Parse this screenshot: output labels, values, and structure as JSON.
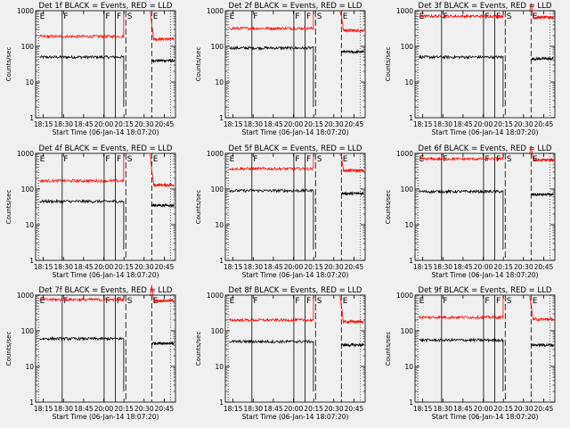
{
  "figure": {
    "background": "#f0f0f0",
    "events_color": "#000000",
    "lld_color": "#ff0000",
    "axes_color": "#000000"
  },
  "chart_data": [
    {
      "type": "line",
      "title": "Det 1f BLACK = Events, RED = LLD",
      "xlabel": "Start Time (06-Jan-14 18:07:20)",
      "ylabel": "Counts/sec",
      "yscale": "log",
      "ylim": [
        1,
        1000
      ],
      "xticks": [
        "18:15",
        "18:30",
        "18:45",
        "20:00",
        "20:15",
        "20:30",
        "20:45"
      ],
      "yticks": [
        "1",
        "10",
        "100",
        "1000"
      ],
      "grid": false,
      "markers": [
        {
          "label": "E",
          "at": 0.02
        },
        {
          "label": "F",
          "at": 0.19
        },
        {
          "label": "F",
          "at": 0.49
        },
        {
          "label": "F",
          "at": 0.57
        },
        {
          "label": "S",
          "at": 0.645
        },
        {
          "label": "E",
          "at": 0.83
        }
      ],
      "series": [
        {
          "name": "Events",
          "color": "#000000",
          "before": 50,
          "after": 40,
          "gap": [
            0.63,
            0.82
          ]
        },
        {
          "name": "LLD",
          "color": "#ff0000",
          "before": 190,
          "after": 160,
          "gap": [
            0.63,
            0.82
          ]
        }
      ]
    },
    {
      "type": "line",
      "title": "Det 2f BLACK = Events, RED = LLD",
      "xlabel": "Start Time (06-Jan-14 18:07:20)",
      "ylabel": "Counts/sec",
      "yscale": "log",
      "ylim": [
        1,
        1000
      ],
      "xticks": [
        "18:15",
        "18:30",
        "18:45",
        "20:00",
        "20:15",
        "20:30",
        "20:45"
      ],
      "yticks": [
        "1",
        "10",
        "100",
        "1000"
      ],
      "grid": false,
      "markers": [
        {
          "label": "E",
          "at": 0.02
        },
        {
          "label": "F",
          "at": 0.19
        },
        {
          "label": "F",
          "at": 0.49
        },
        {
          "label": "F",
          "at": 0.57
        },
        {
          "label": "S",
          "at": 0.645
        },
        {
          "label": "E",
          "at": 0.83
        }
      ],
      "series": [
        {
          "name": "Events",
          "color": "#000000",
          "before": 90,
          "after": 70,
          "gap": [
            0.63,
            0.82
          ]
        },
        {
          "name": "LLD",
          "color": "#ff0000",
          "before": 320,
          "after": 280,
          "gap": [
            0.63,
            0.82
          ]
        }
      ]
    },
    {
      "type": "line",
      "title": "Det 3f BLACK = Events, RED = LLD",
      "xlabel": "Start Time (06-Jan-14 18:07:20)",
      "ylabel": "Counts/sec",
      "yscale": "log",
      "ylim": [
        1,
        1000
      ],
      "xticks": [
        "18:15",
        "18:30",
        "18:45",
        "20:00",
        "20:15",
        "20:30",
        "20:45"
      ],
      "yticks": [
        "1",
        "10",
        "100",
        "1000"
      ],
      "grid": false,
      "markers": [
        {
          "label": "E",
          "at": 0.02
        },
        {
          "label": "F",
          "at": 0.19
        },
        {
          "label": "F",
          "at": 0.49
        },
        {
          "label": "F",
          "at": 0.57
        },
        {
          "label": "S",
          "at": 0.645
        },
        {
          "label": "E",
          "at": 0.83
        }
      ],
      "series": [
        {
          "name": "Events",
          "color": "#000000",
          "before": 50,
          "after": 45,
          "gap": [
            0.63,
            0.82
          ]
        },
        {
          "name": "LLD",
          "color": "#ff0000",
          "before": 700,
          "after": 650,
          "gap": [
            0.63,
            0.82
          ]
        }
      ]
    },
    {
      "type": "line",
      "title": "Det 4f BLACK = Events, RED = LLD",
      "xlabel": "Start Time (06-Jan-14 18:07:20)",
      "ylabel": "Counts/sec",
      "yscale": "log",
      "ylim": [
        1,
        1000
      ],
      "xticks": [
        "18:15",
        "18:30",
        "18:45",
        "20:00",
        "20:15",
        "20:30",
        "20:45"
      ],
      "yticks": [
        "1",
        "10",
        "100",
        "1000"
      ],
      "grid": false,
      "markers": [
        {
          "label": "E",
          "at": 0.02
        },
        {
          "label": "F",
          "at": 0.19
        },
        {
          "label": "F",
          "at": 0.49
        },
        {
          "label": "F",
          "at": 0.57
        },
        {
          "label": "S",
          "at": 0.645
        },
        {
          "label": "E",
          "at": 0.83
        }
      ],
      "series": [
        {
          "name": "Events",
          "color": "#000000",
          "before": 45,
          "after": 35,
          "gap": [
            0.63,
            0.82
          ]
        },
        {
          "name": "LLD",
          "color": "#ff0000",
          "before": 170,
          "after": 130,
          "gap": [
            0.63,
            0.82
          ]
        }
      ]
    },
    {
      "type": "line",
      "title": "Det 5f BLACK = Events, RED = LLD",
      "xlabel": "Start Time (06-Jan-14 18:07:20)",
      "ylabel": "Counts/sec",
      "yscale": "log",
      "ylim": [
        1,
        1000
      ],
      "xticks": [
        "18:15",
        "18:30",
        "18:45",
        "20:00",
        "20:15",
        "20:30",
        "20:45"
      ],
      "yticks": [
        "1",
        "10",
        "100",
        "1000"
      ],
      "grid": false,
      "markers": [
        {
          "label": "E",
          "at": 0.02
        },
        {
          "label": "F",
          "at": 0.19
        },
        {
          "label": "F",
          "at": 0.49
        },
        {
          "label": "F",
          "at": 0.57
        },
        {
          "label": "S",
          "at": 0.645
        },
        {
          "label": "E",
          "at": 0.83
        }
      ],
      "series": [
        {
          "name": "Events",
          "color": "#000000",
          "before": 90,
          "after": 75,
          "gap": [
            0.63,
            0.82
          ]
        },
        {
          "name": "LLD",
          "color": "#ff0000",
          "before": 370,
          "after": 330,
          "gap": [
            0.63,
            0.82
          ]
        }
      ]
    },
    {
      "type": "line",
      "title": "Det 6f BLACK = Events, RED = LLD",
      "xlabel": "Start Time (06-Jan-14 18:07:20)",
      "ylabel": "Counts/sec",
      "yscale": "log",
      "ylim": [
        1,
        1000
      ],
      "xticks": [
        "18:15",
        "18:30",
        "18:45",
        "20:00",
        "20:15",
        "20:30",
        "20:45"
      ],
      "yticks": [
        "1",
        "10",
        "100",
        "1000"
      ],
      "grid": false,
      "markers": [
        {
          "label": "E",
          "at": 0.02
        },
        {
          "label": "F",
          "at": 0.19
        },
        {
          "label": "F",
          "at": 0.49
        },
        {
          "label": "F",
          "at": 0.57
        },
        {
          "label": "S",
          "at": 0.645
        },
        {
          "label": "E",
          "at": 0.83
        }
      ],
      "series": [
        {
          "name": "Events",
          "color": "#000000",
          "before": 85,
          "after": 70,
          "gap": [
            0.63,
            0.82
          ]
        },
        {
          "name": "LLD",
          "color": "#ff0000",
          "before": 700,
          "after": 650,
          "gap": [
            0.63,
            0.82
          ]
        }
      ]
    },
    {
      "type": "line",
      "title": "Det 7f BLACK = Events, RED = LLD",
      "xlabel": "Start Time (06-Jan-14 18:07:20)",
      "ylabel": "Counts/sec",
      "yscale": "log",
      "ylim": [
        1,
        1000
      ],
      "xticks": [
        "18:15",
        "18:30",
        "18:45",
        "20:00",
        "20:15",
        "20:30",
        "20:45"
      ],
      "yticks": [
        "1",
        "10",
        "100",
        "1000"
      ],
      "grid": false,
      "markers": [
        {
          "label": "E",
          "at": 0.02
        },
        {
          "label": "F",
          "at": 0.19
        },
        {
          "label": "F",
          "at": 0.49
        },
        {
          "label": "F",
          "at": 0.57
        },
        {
          "label": "S",
          "at": 0.645
        },
        {
          "label": "E",
          "at": 0.83
        }
      ],
      "series": [
        {
          "name": "Events",
          "color": "#000000",
          "before": 60,
          "after": 45,
          "gap": [
            0.63,
            0.82
          ]
        },
        {
          "name": "LLD",
          "color": "#ff0000",
          "before": 750,
          "after": 700,
          "gap": [
            0.63,
            0.82
          ]
        }
      ]
    },
    {
      "type": "line",
      "title": "Det 8f BLACK = Events, RED = LLD",
      "xlabel": "Start Time (06-Jan-14 18:07:20)",
      "ylabel": "Counts/sec",
      "yscale": "log",
      "ylim": [
        1,
        1000
      ],
      "xticks": [
        "18:15",
        "18:30",
        "18:45",
        "20:00",
        "20:15",
        "20:30",
        "20:45"
      ],
      "yticks": [
        "1",
        "10",
        "100",
        "1000"
      ],
      "grid": false,
      "markers": [
        {
          "label": "E",
          "at": 0.02
        },
        {
          "label": "F",
          "at": 0.19
        },
        {
          "label": "F",
          "at": 0.49
        },
        {
          "label": "F",
          "at": 0.57
        },
        {
          "label": "S",
          "at": 0.645
        },
        {
          "label": "E",
          "at": 0.83
        }
      ],
      "series": [
        {
          "name": "Events",
          "color": "#000000",
          "before": 50,
          "after": 40,
          "gap": [
            0.63,
            0.82
          ]
        },
        {
          "name": "LLD",
          "color": "#ff0000",
          "before": 200,
          "after": 180,
          "gap": [
            0.63,
            0.82
          ]
        }
      ]
    },
    {
      "type": "line",
      "title": "Det 9f BLACK = Events, RED = LLD",
      "xlabel": "Start Time (06-Jan-14 18:07:20)",
      "ylabel": "Counts/sec",
      "yscale": "log",
      "ylim": [
        1,
        1000
      ],
      "xticks": [
        "18:15",
        "18:30",
        "18:45",
        "20:00",
        "20:15",
        "20:30",
        "20:45"
      ],
      "yticks": [
        "1",
        "10",
        "100",
        "1000"
      ],
      "grid": false,
      "markers": [
        {
          "label": "E",
          "at": 0.02
        },
        {
          "label": "F",
          "at": 0.19
        },
        {
          "label": "F",
          "at": 0.49
        },
        {
          "label": "F",
          "at": 0.57
        },
        {
          "label": "S",
          "at": 0.645
        },
        {
          "label": "E",
          "at": 0.83
        }
      ],
      "series": [
        {
          "name": "Events",
          "color": "#000000",
          "before": 55,
          "after": 40,
          "gap": [
            0.63,
            0.82
          ]
        },
        {
          "name": "LLD",
          "color": "#ff0000",
          "before": 240,
          "after": 210,
          "gap": [
            0.63,
            0.82
          ]
        }
      ]
    }
  ]
}
